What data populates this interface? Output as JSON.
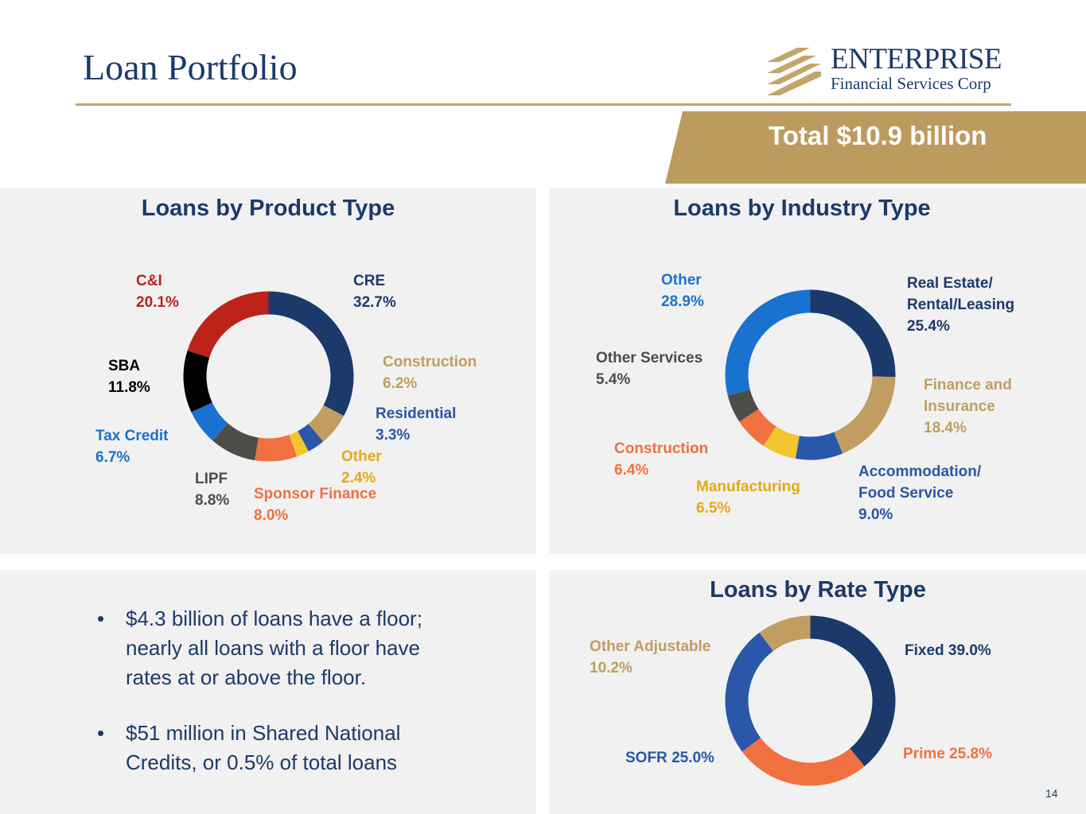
{
  "header": {
    "title": "Loan Portfolio",
    "logo_line1": "ENTERPRISE",
    "logo_line2": "Financial Services Corp",
    "total_banner": "Total $10.9 billion"
  },
  "colors": {
    "navy": "#1b3a6b",
    "gold": "#c4a46a",
    "panel_bg": "#f1f1f1"
  },
  "chart_data": [
    {
      "type": "pie",
      "title": "Loans by Product Type",
      "unit": "%",
      "slices": [
        {
          "label": "CRE",
          "value": 32.7,
          "value_label": "32.7%",
          "color": "#1b3a6b"
        },
        {
          "label": "Construction",
          "value": 6.2,
          "value_label": "6.2%",
          "color": "#c19d62"
        },
        {
          "label": "Residential",
          "value": 3.3,
          "value_label": "3.3%",
          "color": "#2a57a8"
        },
        {
          "label": "Other",
          "value": 2.4,
          "value_label": "2.4%",
          "color": "#f2c42e"
        },
        {
          "label": "Sponsor Finance",
          "value": 8.0,
          "value_label": "8.0%",
          "color": "#f07040"
        },
        {
          "label": "LIPF",
          "value": 8.8,
          "value_label": "8.8%",
          "color": "#4d4d47"
        },
        {
          "label": "Tax Credit",
          "value": 6.7,
          "value_label": "6.7%",
          "color": "#1a72d0"
        },
        {
          "label": "SBA",
          "value": 11.8,
          "value_label": "11.8%",
          "color": "#000000"
        },
        {
          "label": "C&I",
          "value": 20.1,
          "value_label": "20.1%",
          "color": "#bd2318"
        }
      ]
    },
    {
      "type": "pie",
      "title": "Loans by Industry Type",
      "unit": "%",
      "slices": [
        {
          "label": "Real Estate/ Rental/Leasing",
          "label_lines": [
            "Real Estate/",
            "Rental/Leasing"
          ],
          "value": 25.4,
          "value_label": "25.4%",
          "color": "#1b3a6b"
        },
        {
          "label": "Finance and Insurance",
          "label_lines": [
            "Finance and",
            "Insurance"
          ],
          "value": 18.4,
          "value_label": "18.4%",
          "color": "#c19d62"
        },
        {
          "label": "Accommodation/ Food Service",
          "label_lines": [
            "Accommodation/",
            "Food Service"
          ],
          "value": 9.0,
          "value_label": "9.0%",
          "color": "#2a57a8"
        },
        {
          "label": "Manufacturing",
          "label_lines": [
            "Manufacturing"
          ],
          "value": 6.5,
          "value_label": "6.5%",
          "color": "#f2c42e"
        },
        {
          "label": "Construction",
          "label_lines": [
            "Construction"
          ],
          "value": 6.4,
          "value_label": "6.4%",
          "color": "#f07040"
        },
        {
          "label": "Other Services",
          "label_lines": [
            "Other Services"
          ],
          "value": 5.4,
          "value_label": "5.4%",
          "color": "#4d4d47"
        },
        {
          "label": "Other",
          "label_lines": [
            "Other"
          ],
          "value": 28.9,
          "value_label": "28.9%",
          "color": "#1a72d0"
        }
      ]
    },
    {
      "type": "pie",
      "title": "Loans by Rate Type",
      "unit": "%",
      "slices": [
        {
          "label": "Fixed",
          "value": 39.0,
          "value_label": "39.0%",
          "color": "#1b3a6b"
        },
        {
          "label": "Prime",
          "value": 25.8,
          "value_label": "25.8%",
          "color": "#f07040"
        },
        {
          "label": "SOFR",
          "value": 25.0,
          "value_label": "25.0%",
          "color": "#2a57a8"
        },
        {
          "label": "Other Adjustable",
          "value": 10.2,
          "value_label": "10.2%",
          "color": "#c19d62"
        }
      ]
    }
  ],
  "notes": {
    "bullets": [
      "$4.3 billion of loans have a floor; nearly all loans with a floor have rates at or above the floor.",
      "$51 million in Shared National Credits, or 0.5% of total loans"
    ]
  },
  "footer": {
    "page_number": "14"
  }
}
